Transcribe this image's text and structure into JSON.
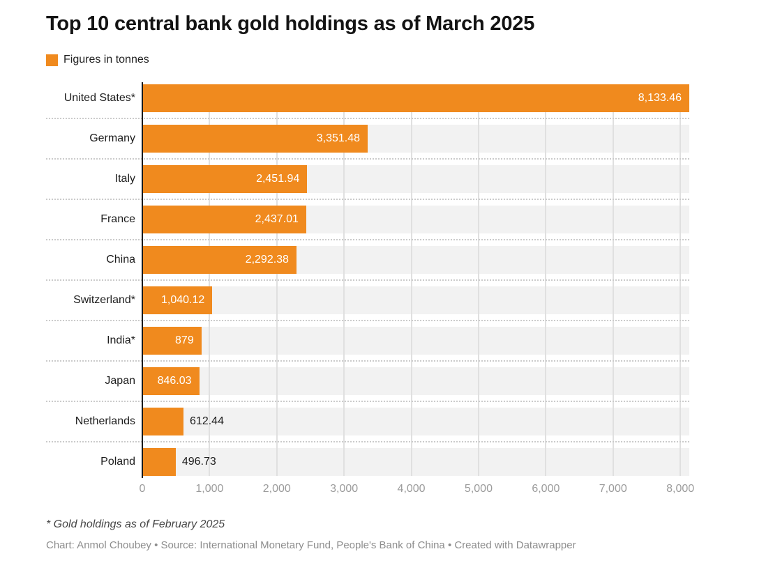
{
  "header": {
    "title": "Top 10 central bank gold holdings as of March 2025"
  },
  "legend": {
    "label": "Figures in tonnes",
    "swatch_color": "#F08A1E"
  },
  "chart_data": {
    "type": "bar",
    "orientation": "horizontal",
    "title": "Top 10 central bank gold holdings as of March 2025",
    "unit": "tonnes",
    "categories": [
      "United States*",
      "Germany",
      "Italy",
      "France",
      "China",
      "Switzerland*",
      "India*",
      "Japan",
      "Netherlands",
      "Poland"
    ],
    "values": [
      8133.46,
      3351.48,
      2451.94,
      2437.01,
      2292.38,
      1040.12,
      879,
      846.03,
      612.44,
      496.73
    ],
    "value_labels": [
      "8,133.46",
      "3,351.48",
      "2,451.94",
      "2,437.01",
      "2,292.38",
      "1,040.12",
      "879",
      "846.03",
      "612.44",
      "496.73"
    ],
    "xlim": [
      0,
      8133.46
    ],
    "x_ticks": [
      0,
      1000,
      2000,
      3000,
      4000,
      5000,
      6000,
      7000,
      8000
    ],
    "x_tick_labels": [
      "0",
      "1,000",
      "2,000",
      "3,000",
      "4,000",
      "5,000",
      "6,000",
      "7,000",
      "8,000"
    ],
    "bar_color": "#F08A1E",
    "track_color": "#F2F2F2",
    "grid": true,
    "legend_position": "top-left"
  },
  "footer": {
    "footnote": "* Gold holdings as of February 2025",
    "credit": "Chart: Anmol Choubey • Source: International Monetary Fund, People's Bank of China • Created with Datawrapper"
  }
}
